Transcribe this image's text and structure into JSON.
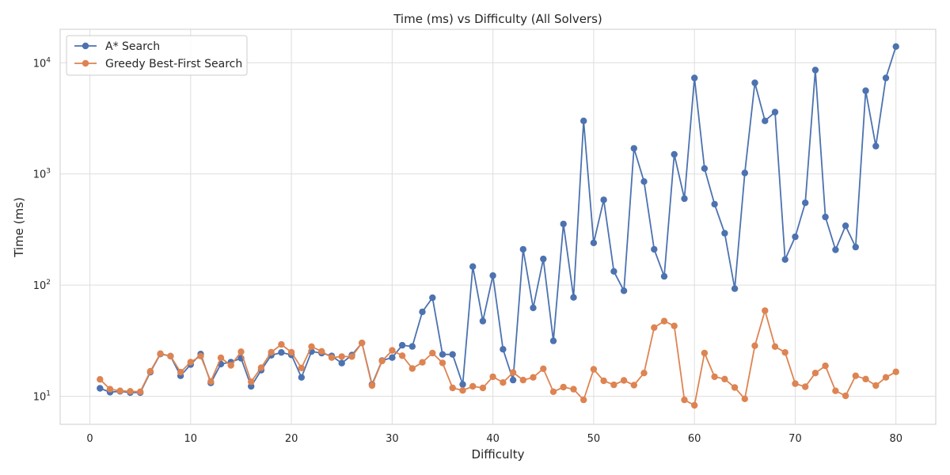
{
  "chart_data": {
    "type": "line",
    "title": "Time (ms) vs Difficulty (All Solvers)",
    "xlabel": "Difficulty",
    "ylabel": "Time (ms)",
    "xlim": [
      -2.95,
      83.95
    ],
    "ylim": [
      5.6,
      20000
    ],
    "yscale": "log",
    "grid": true,
    "legend_position": "top-left",
    "x_ticks": [
      0,
      10,
      20,
      30,
      40,
      50,
      60,
      70,
      80
    ],
    "y_ticks": [
      10,
      100,
      1000,
      10000
    ],
    "y_tick_labels": [
      {
        "base": "10",
        "exp": "1"
      },
      {
        "base": "10",
        "exp": "2"
      },
      {
        "base": "10",
        "exp": "3"
      },
      {
        "base": "10",
        "exp": "4"
      }
    ],
    "x": [
      1,
      2,
      3,
      4,
      5,
      6,
      7,
      8,
      9,
      10,
      11,
      12,
      13,
      14,
      15,
      16,
      17,
      18,
      19,
      20,
      21,
      22,
      23,
      24,
      25,
      26,
      27,
      28,
      29,
      30,
      31,
      32,
      33,
      34,
      35,
      36,
      37,
      38,
      39,
      40,
      41,
      42,
      43,
      44,
      45,
      46,
      47,
      48,
      49,
      50,
      51,
      52,
      53,
      54,
      55,
      56,
      57,
      58,
      59,
      60,
      61,
      62,
      63,
      64,
      65,
      66,
      67,
      68,
      69,
      70,
      71,
      72,
      73,
      74,
      75,
      76,
      77,
      78,
      79,
      80
    ],
    "series": [
      {
        "name": "A* Search",
        "color": "#4c72b0",
        "values": [
          11.8,
          10.9,
          11.1,
          10.8,
          10.8,
          16.5,
          24,
          23,
          15.3,
          19.3,
          24,
          13.2,
          19.5,
          20.3,
          22,
          12.3,
          17.2,
          23.4,
          24.8,
          23.6,
          14.8,
          25.3,
          24.5,
          23.1,
          19.9,
          23.5,
          30.2,
          12.8,
          21,
          22.3,
          28.8,
          28.1,
          57.5,
          77,
          23.8,
          23.8,
          12.8,
          147,
          47.5,
          122,
          26.5,
          14,
          210,
          62.5,
          172,
          31.5,
          355,
          77.5,
          3000,
          240,
          585,
          133,
          89,
          1700,
          855,
          210,
          120,
          1500,
          600,
          7300,
          1120,
          535,
          293,
          93,
          1020,
          6600,
          3000,
          3600,
          170,
          272,
          550,
          8600,
          410,
          208,
          342,
          220,
          5600,
          1780,
          7300,
          14000
        ]
      },
      {
        "name": "Greedy Best-First Search",
        "color": "#dd8452",
        "values": [
          14.2,
          11.6,
          11.2,
          11.1,
          11,
          16.8,
          24.2,
          23,
          16.5,
          20.3,
          23,
          13.6,
          22.2,
          19,
          25.2,
          13.5,
          18.1,
          24.9,
          29.3,
          24.9,
          18,
          28,
          25.4,
          22.3,
          22.8,
          22.8,
          30.2,
          12.5,
          20.8,
          25.9,
          23.2,
          17.8,
          20.2,
          24.5,
          20,
          11.9,
          11.3,
          12.3,
          11.9,
          15,
          13.3,
          16.4,
          14,
          14.8,
          17.7,
          11,
          12.1,
          11.6,
          9.3,
          17.5,
          13.8,
          12.7,
          13.9,
          12.6,
          16.2,
          41.5,
          47.5,
          43,
          9.3,
          8.3,
          24.5,
          15,
          14.3,
          12,
          9.5,
          28.5,
          59,
          28,
          24.8,
          13,
          12.2,
          16.2,
          18.8,
          11.2,
          10.1,
          15.3,
          14.3,
          12.5,
          14.8,
          16.6
        ]
      }
    ]
  }
}
